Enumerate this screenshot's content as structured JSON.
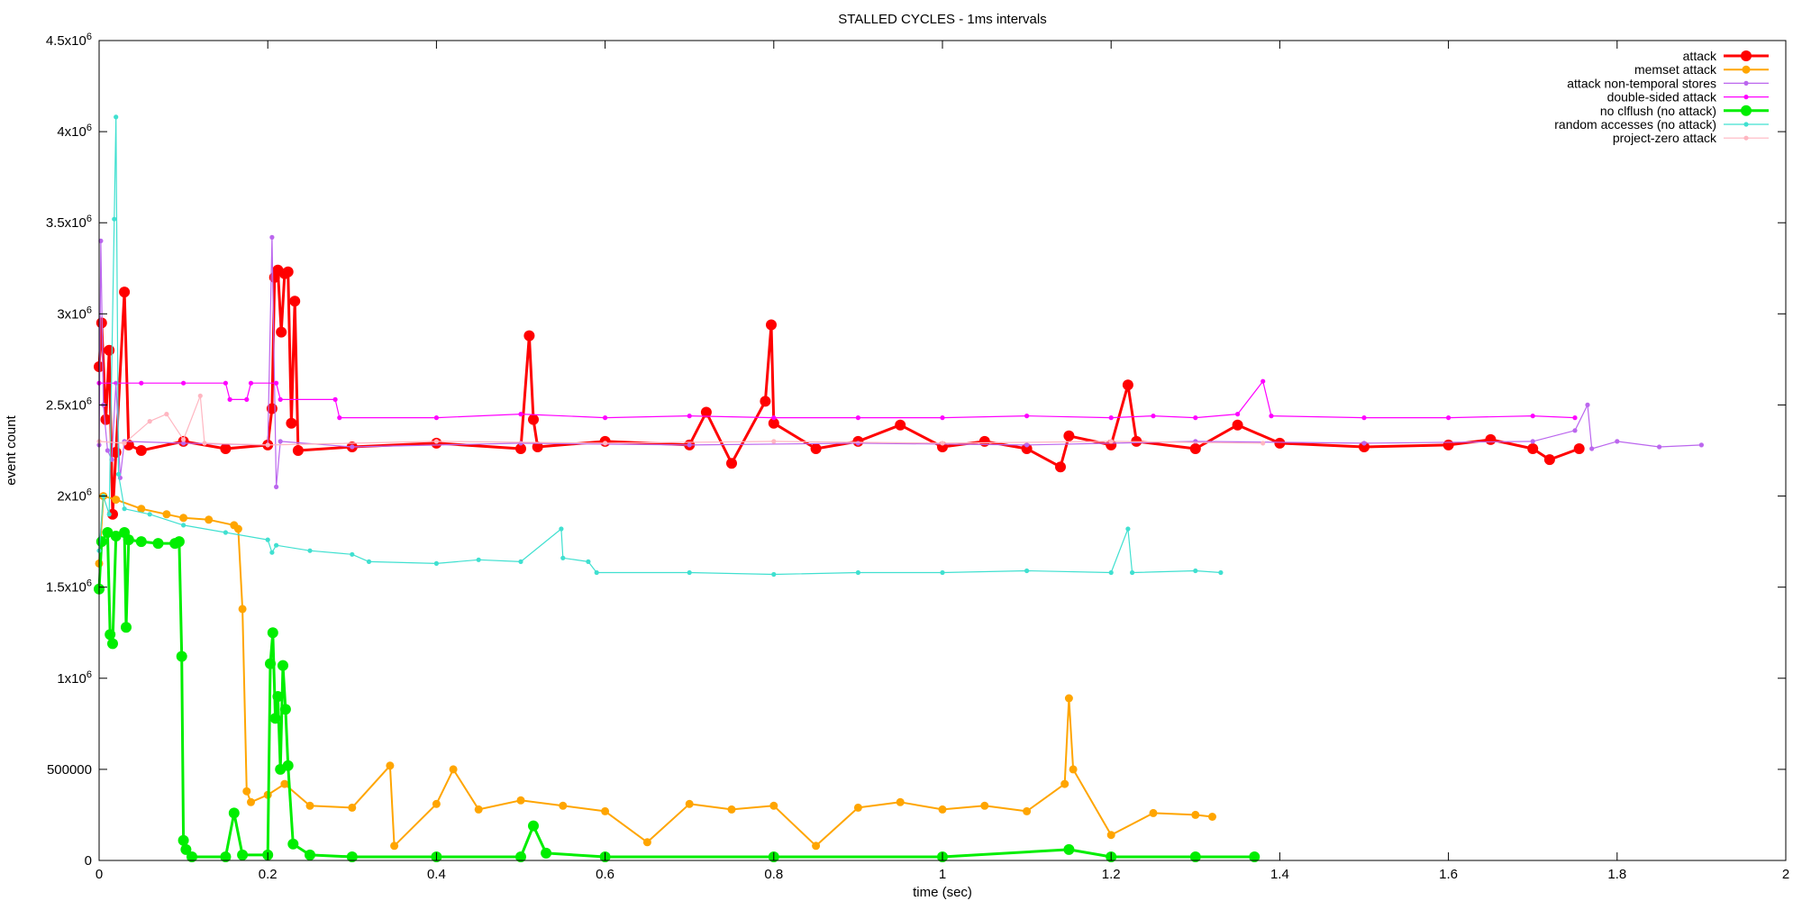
{
  "chart_data": {
    "type": "line",
    "title": "STALLED CYCLES - 1ms intervals",
    "xlabel": "time (sec)",
    "ylabel": "event count",
    "xlim": [
      0,
      2
    ],
    "ylim": [
      0,
      4500000
    ],
    "x_ticks": [
      {
        "value": 0,
        "label": "0"
      },
      {
        "value": 0.2,
        "label": "0.2"
      },
      {
        "value": 0.4,
        "label": "0.4"
      },
      {
        "value": 0.6,
        "label": "0.6"
      },
      {
        "value": 0.8,
        "label": "0.8"
      },
      {
        "value": 1.0,
        "label": "1"
      },
      {
        "value": 1.2,
        "label": "1.2"
      },
      {
        "value": 1.4,
        "label": "1.4"
      },
      {
        "value": 1.6,
        "label": "1.6"
      },
      {
        "value": 1.8,
        "label": "1.8"
      },
      {
        "value": 2.0,
        "label": "2"
      }
    ],
    "y_ticks": [
      {
        "value": 0,
        "label": "0"
      },
      {
        "value": 500000,
        "label": "500000"
      },
      {
        "value": 1000000,
        "label": "1x10",
        "exp": "6"
      },
      {
        "value": 1500000,
        "label": "1.5x10",
        "exp": "6"
      },
      {
        "value": 2000000,
        "label": "2x10",
        "exp": "6"
      },
      {
        "value": 2500000,
        "label": "2.5x10",
        "exp": "6"
      },
      {
        "value": 3000000,
        "label": "3x10",
        "exp": "6"
      },
      {
        "value": 3500000,
        "label": "3.5x10",
        "exp": "6"
      },
      {
        "value": 4000000,
        "label": "4x10",
        "exp": "6"
      },
      {
        "value": 4500000,
        "label": "4.5x10",
        "exp": "6"
      }
    ],
    "grid": false,
    "legend_position": "top-right",
    "series": [
      {
        "name": "attack",
        "color": "#ff0000",
        "marker": "large",
        "points": [
          [
            0.0,
            2710000
          ],
          [
            0.003,
            2950000
          ],
          [
            0.008,
            2420000
          ],
          [
            0.012,
            2800000
          ],
          [
            0.016,
            1900000
          ],
          [
            0.02,
            2240000
          ],
          [
            0.03,
            3120000
          ],
          [
            0.035,
            2280000
          ],
          [
            0.05,
            2250000
          ],
          [
            0.1,
            2300000
          ],
          [
            0.15,
            2260000
          ],
          [
            0.2,
            2280000
          ],
          [
            0.205,
            2480000
          ],
          [
            0.208,
            3200000
          ],
          [
            0.212,
            3240000
          ],
          [
            0.216,
            2900000
          ],
          [
            0.22,
            3220000
          ],
          [
            0.224,
            3230000
          ],
          [
            0.228,
            2400000
          ],
          [
            0.232,
            3070000
          ],
          [
            0.236,
            2250000
          ],
          [
            0.3,
            2270000
          ],
          [
            0.4,
            2290000
          ],
          [
            0.5,
            2260000
          ],
          [
            0.51,
            2880000
          ],
          [
            0.515,
            2420000
          ],
          [
            0.52,
            2270000
          ],
          [
            0.6,
            2300000
          ],
          [
            0.7,
            2280000
          ],
          [
            0.72,
            2460000
          ],
          [
            0.75,
            2180000
          ],
          [
            0.79,
            2520000
          ],
          [
            0.797,
            2940000
          ],
          [
            0.8,
            2400000
          ],
          [
            0.85,
            2260000
          ],
          [
            0.9,
            2300000
          ],
          [
            0.95,
            2390000
          ],
          [
            1.0,
            2270000
          ],
          [
            1.05,
            2300000
          ],
          [
            1.1,
            2260000
          ],
          [
            1.14,
            2160000
          ],
          [
            1.15,
            2330000
          ],
          [
            1.2,
            2280000
          ],
          [
            1.22,
            2610000
          ],
          [
            1.23,
            2300000
          ],
          [
            1.3,
            2260000
          ],
          [
            1.35,
            2390000
          ],
          [
            1.4,
            2290000
          ],
          [
            1.5,
            2270000
          ],
          [
            1.6,
            2280000
          ],
          [
            1.65,
            2310000
          ],
          [
            1.7,
            2260000
          ],
          [
            1.72,
            2200000
          ],
          [
            1.755,
            2260000
          ]
        ]
      },
      {
        "name": "memset attack",
        "color": "#ffa500",
        "marker": "medium",
        "points": [
          [
            0.0,
            1630000
          ],
          [
            0.005,
            2000000
          ],
          [
            0.02,
            1980000
          ],
          [
            0.05,
            1930000
          ],
          [
            0.08,
            1900000
          ],
          [
            0.1,
            1880000
          ],
          [
            0.13,
            1870000
          ],
          [
            0.16,
            1840000
          ],
          [
            0.165,
            1820000
          ],
          [
            0.17,
            1380000
          ],
          [
            0.175,
            380000
          ],
          [
            0.18,
            320000
          ],
          [
            0.2,
            360000
          ],
          [
            0.22,
            420000
          ],
          [
            0.25,
            300000
          ],
          [
            0.3,
            290000
          ],
          [
            0.345,
            520000
          ],
          [
            0.35,
            80000
          ],
          [
            0.4,
            310000
          ],
          [
            0.42,
            500000
          ],
          [
            0.45,
            280000
          ],
          [
            0.5,
            330000
          ],
          [
            0.55,
            300000
          ],
          [
            0.6,
            270000
          ],
          [
            0.65,
            100000
          ],
          [
            0.7,
            310000
          ],
          [
            0.75,
            280000
          ],
          [
            0.8,
            300000
          ],
          [
            0.85,
            80000
          ],
          [
            0.9,
            290000
          ],
          [
            0.95,
            320000
          ],
          [
            1.0,
            280000
          ],
          [
            1.05,
            300000
          ],
          [
            1.1,
            270000
          ],
          [
            1.145,
            420000
          ],
          [
            1.15,
            890000
          ],
          [
            1.155,
            500000
          ],
          [
            1.2,
            140000
          ],
          [
            1.25,
            260000
          ],
          [
            1.3,
            250000
          ],
          [
            1.32,
            240000
          ]
        ]
      },
      {
        "name": "attack non-temporal stores",
        "color": "#bb66ee",
        "marker": "small",
        "points": [
          [
            0.0,
            2280000
          ],
          [
            0.002,
            3400000
          ],
          [
            0.005,
            2500000
          ],
          [
            0.01,
            2250000
          ],
          [
            0.015,
            2200000
          ],
          [
            0.02,
            2620000
          ],
          [
            0.025,
            2100000
          ],
          [
            0.03,
            2300000
          ],
          [
            0.1,
            2290000
          ],
          [
            0.2,
            2280000
          ],
          [
            0.205,
            3420000
          ],
          [
            0.21,
            2050000
          ],
          [
            0.215,
            2300000
          ],
          [
            0.3,
            2270000
          ],
          [
            0.5,
            2290000
          ],
          [
            0.7,
            2280000
          ],
          [
            0.9,
            2290000
          ],
          [
            1.1,
            2280000
          ],
          [
            1.3,
            2300000
          ],
          [
            1.5,
            2290000
          ],
          [
            1.7,
            2300000
          ],
          [
            1.75,
            2360000
          ],
          [
            1.765,
            2500000
          ],
          [
            1.77,
            2260000
          ],
          [
            1.8,
            2300000
          ],
          [
            1.85,
            2270000
          ],
          [
            1.9,
            2280000
          ]
        ]
      },
      {
        "name": "double-sided attack",
        "color": "#ff00ff",
        "marker": "small",
        "points": [
          [
            0.0,
            2620000
          ],
          [
            0.05,
            2620000
          ],
          [
            0.1,
            2620000
          ],
          [
            0.15,
            2620000
          ],
          [
            0.155,
            2530000
          ],
          [
            0.175,
            2530000
          ],
          [
            0.18,
            2620000
          ],
          [
            0.21,
            2620000
          ],
          [
            0.215,
            2530000
          ],
          [
            0.28,
            2530000
          ],
          [
            0.285,
            2430000
          ],
          [
            0.4,
            2430000
          ],
          [
            0.5,
            2450000
          ],
          [
            0.6,
            2430000
          ],
          [
            0.7,
            2440000
          ],
          [
            0.8,
            2430000
          ],
          [
            0.9,
            2430000
          ],
          [
            1.0,
            2430000
          ],
          [
            1.1,
            2440000
          ],
          [
            1.2,
            2430000
          ],
          [
            1.25,
            2440000
          ],
          [
            1.3,
            2430000
          ],
          [
            1.35,
            2450000
          ],
          [
            1.38,
            2630000
          ],
          [
            1.39,
            2440000
          ],
          [
            1.5,
            2430000
          ],
          [
            1.6,
            2430000
          ],
          [
            1.7,
            2440000
          ],
          [
            1.75,
            2430000
          ]
        ]
      },
      {
        "name": "no clflush (no attack)",
        "color": "#00ee00",
        "marker": "large",
        "points": [
          [
            0.0,
            1490000
          ],
          [
            0.003,
            1750000
          ],
          [
            0.01,
            1800000
          ],
          [
            0.013,
            1240000
          ],
          [
            0.016,
            1190000
          ],
          [
            0.02,
            1780000
          ],
          [
            0.03,
            1800000
          ],
          [
            0.032,
            1280000
          ],
          [
            0.035,
            1760000
          ],
          [
            0.05,
            1750000
          ],
          [
            0.07,
            1740000
          ],
          [
            0.09,
            1740000
          ],
          [
            0.095,
            1750000
          ],
          [
            0.098,
            1120000
          ],
          [
            0.1,
            110000
          ],
          [
            0.103,
            60000
          ],
          [
            0.11,
            20000
          ],
          [
            0.15,
            20000
          ],
          [
            0.16,
            260000
          ],
          [
            0.17,
            30000
          ],
          [
            0.2,
            30000
          ],
          [
            0.203,
            1080000
          ],
          [
            0.206,
            1250000
          ],
          [
            0.209,
            780000
          ],
          [
            0.212,
            900000
          ],
          [
            0.215,
            500000
          ],
          [
            0.218,
            1070000
          ],
          [
            0.221,
            830000
          ],
          [
            0.224,
            520000
          ],
          [
            0.23,
            90000
          ],
          [
            0.25,
            30000
          ],
          [
            0.3,
            20000
          ],
          [
            0.4,
            20000
          ],
          [
            0.5,
            20000
          ],
          [
            0.515,
            190000
          ],
          [
            0.53,
            40000
          ],
          [
            0.6,
            20000
          ],
          [
            0.8,
            20000
          ],
          [
            1.0,
            20000
          ],
          [
            1.15,
            60000
          ],
          [
            1.2,
            20000
          ],
          [
            1.3,
            20000
          ],
          [
            1.37,
            20000
          ]
        ]
      },
      {
        "name": "random accesses (no attack)",
        "color": "#40e0d0",
        "marker": "small",
        "points": [
          [
            0.0,
            1700000
          ],
          [
            0.005,
            2000000
          ],
          [
            0.012,
            1900000
          ],
          [
            0.018,
            3520000
          ],
          [
            0.02,
            4080000
          ],
          [
            0.023,
            2120000
          ],
          [
            0.03,
            1930000
          ],
          [
            0.06,
            1900000
          ],
          [
            0.1,
            1840000
          ],
          [
            0.15,
            1800000
          ],
          [
            0.2,
            1760000
          ],
          [
            0.205,
            1690000
          ],
          [
            0.21,
            1730000
          ],
          [
            0.25,
            1700000
          ],
          [
            0.3,
            1680000
          ],
          [
            0.32,
            1640000
          ],
          [
            0.4,
            1630000
          ],
          [
            0.45,
            1650000
          ],
          [
            0.5,
            1640000
          ],
          [
            0.548,
            1820000
          ],
          [
            0.55,
            1660000
          ],
          [
            0.58,
            1640000
          ],
          [
            0.59,
            1580000
          ],
          [
            0.7,
            1580000
          ],
          [
            0.8,
            1570000
          ],
          [
            0.9,
            1580000
          ],
          [
            1.0,
            1580000
          ],
          [
            1.1,
            1590000
          ],
          [
            1.2,
            1580000
          ],
          [
            1.22,
            1820000
          ],
          [
            1.225,
            1580000
          ],
          [
            1.3,
            1590000
          ],
          [
            1.33,
            1580000
          ]
        ]
      },
      {
        "name": "project-zero attack",
        "color": "#ffb6c1",
        "marker": "small",
        "points": [
          [
            0.0,
            2300000
          ],
          [
            0.03,
            2290000
          ],
          [
            0.06,
            2410000
          ],
          [
            0.08,
            2450000
          ],
          [
            0.1,
            2310000
          ],
          [
            0.12,
            2550000
          ],
          [
            0.125,
            2290000
          ],
          [
            0.2,
            2280000
          ],
          [
            0.4,
            2300000
          ],
          [
            0.6,
            2290000
          ],
          [
            0.8,
            2300000
          ],
          [
            1.0,
            2290000
          ],
          [
            1.2,
            2300000
          ],
          [
            1.38,
            2290000
          ]
        ]
      }
    ]
  }
}
